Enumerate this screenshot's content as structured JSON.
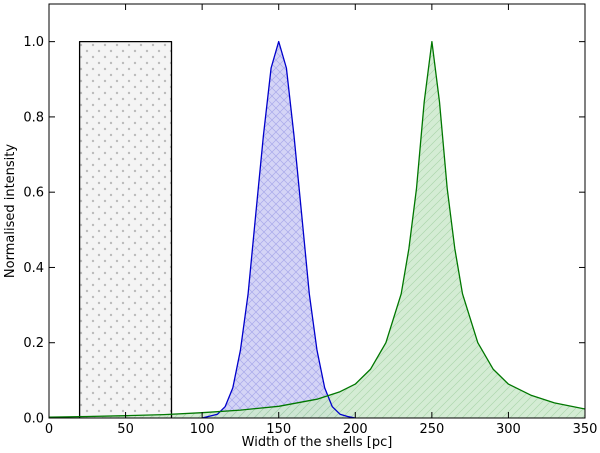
{
  "chart_data": {
    "type": "area",
    "title": "",
    "xlabel": "Width of the shells [pc]",
    "ylabel": "Normalised intensity",
    "xlim": [
      0,
      350
    ],
    "ylim": [
      0.0,
      1.1
    ],
    "xticks": [
      0,
      50,
      100,
      150,
      200,
      250,
      300,
      350
    ],
    "yticks": [
      0.0,
      0.2,
      0.4,
      0.6,
      0.8,
      1.0
    ],
    "xtick_labels": [
      "0",
      "50",
      "100",
      "150",
      "200",
      "250",
      "300",
      "350"
    ],
    "ytick_labels": [
      "0.0",
      "0.2",
      "0.4",
      "0.6",
      "0.8",
      "1.0"
    ],
    "grid": false,
    "series": [
      {
        "shape": "top-hat",
        "x": [
          20,
          20,
          80,
          80
        ],
        "y": [
          0.0,
          1.0,
          1.0,
          0.0
        ],
        "line_color": "#000000",
        "fill_color": "#f2f2f2",
        "hatch": "dots"
      },
      {
        "shape": "gaussian",
        "x": [
          100,
          105,
          110,
          115,
          120,
          125,
          130,
          135,
          140,
          145,
          150,
          155,
          160,
          165,
          170,
          175,
          180,
          185,
          190,
          195,
          200
        ],
        "y": [
          0.0,
          0.005,
          0.01,
          0.03,
          0.08,
          0.18,
          0.33,
          0.54,
          0.75,
          0.93,
          1.0,
          0.93,
          0.75,
          0.54,
          0.33,
          0.18,
          0.08,
          0.03,
          0.01,
          0.004,
          0.0
        ],
        "line_color": "#0000cc",
        "fill_color": "#ccccf5",
        "hatch": "crosshatch"
      },
      {
        "shape": "lorentzian",
        "x": [
          0,
          25,
          50,
          75,
          100,
          125,
          150,
          175,
          190,
          200,
          210,
          220,
          230,
          235,
          240,
          245,
          250,
          255,
          260,
          265,
          270,
          280,
          290,
          300,
          315,
          330,
          350
        ],
        "y": [
          0.002,
          0.004,
          0.006,
          0.009,
          0.014,
          0.021,
          0.031,
          0.05,
          0.07,
          0.09,
          0.13,
          0.2,
          0.33,
          0.45,
          0.61,
          0.84,
          1.0,
          0.84,
          0.61,
          0.45,
          0.33,
          0.2,
          0.13,
          0.09,
          0.06,
          0.04,
          0.024
        ],
        "line_color": "#007700",
        "fill_color": "#cde9cd",
        "hatch": "diagonal"
      }
    ]
  }
}
